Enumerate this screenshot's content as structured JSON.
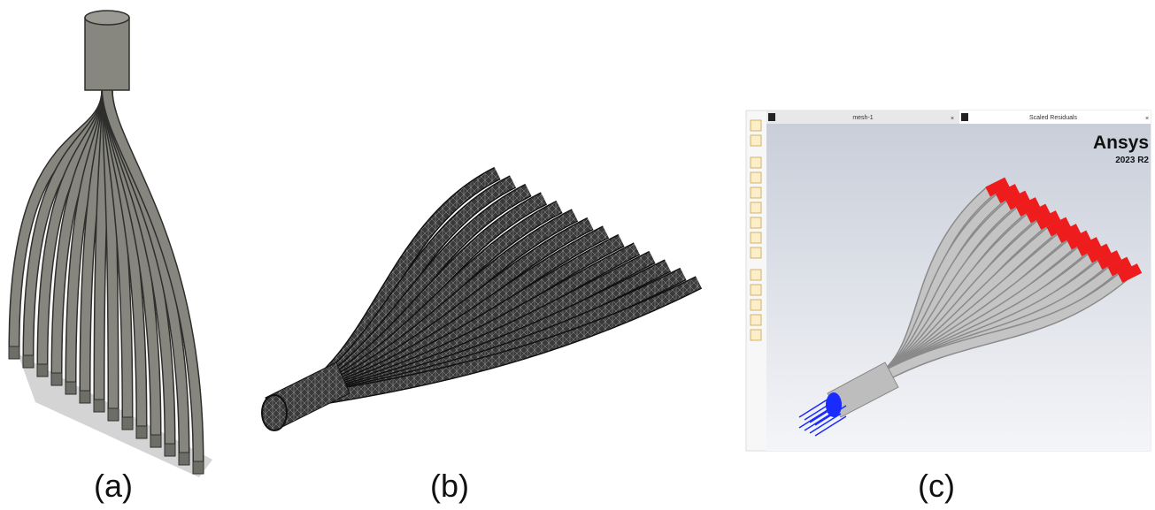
{
  "panels": [
    {
      "label": "(a)"
    },
    {
      "label": "(b)"
    },
    {
      "label": "(c)",
      "tabs": [
        "mesh-1",
        "Scaled Residuals"
      ],
      "logo": "Ansys",
      "version": "2023 R2"
    }
  ]
}
